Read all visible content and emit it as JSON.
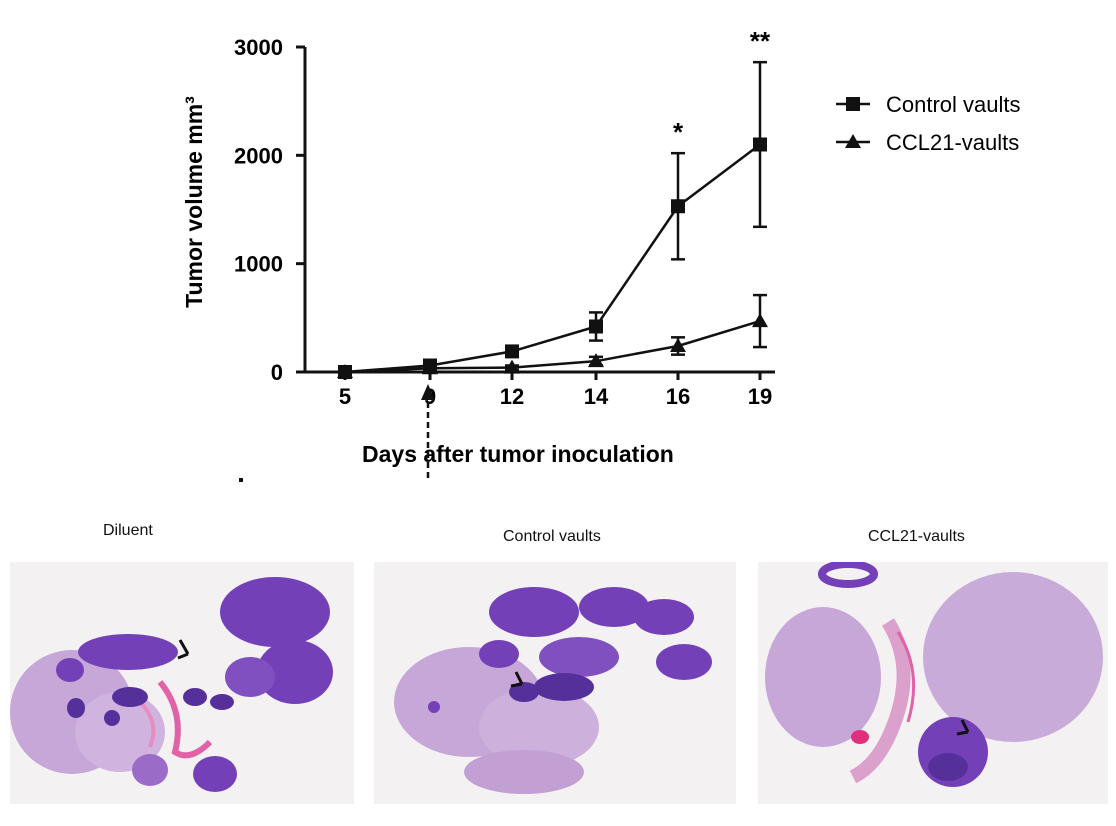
{
  "chart_data": {
    "type": "line",
    "categories": [
      "5",
      "9",
      "12",
      "14",
      "16",
      "19"
    ],
    "ylabel": "Tumor volume mm³",
    "xlabel": "Days after tumor inoculation",
    "yticks": [
      "0",
      "1000",
      "2000",
      "3000"
    ],
    "ylim": [
      0,
      3000
    ],
    "legend_position": "right",
    "series": [
      {
        "name": "Control vaults",
        "marker": "square",
        "values": [
          0,
          60,
          190,
          420,
          1530,
          2100
        ],
        "errors": [
          0,
          20,
          40,
          130,
          490,
          760
        ]
      },
      {
        "name": "CCL21-vaults",
        "marker": "triangle",
        "values": [
          0,
          35,
          40,
          100,
          240,
          470
        ],
        "errors": [
          0,
          15,
          20,
          40,
          80,
          240
        ]
      }
    ],
    "annotations": [
      {
        "category": "16",
        "text": "*"
      },
      {
        "category": "19",
        "text": "**"
      }
    ],
    "treatment_marker_day": "9",
    "color": "#111111"
  },
  "panels": [
    {
      "label": "Diluent"
    },
    {
      "label": "Control vaults"
    },
    {
      "label": "CCL21-vaults"
    }
  ],
  "colors": {
    "tissue_light": "#c7a6d8",
    "tissue_dark": "#7440b8",
    "tissue_deep": "#55309a",
    "eosin": "#e262a8",
    "background": "#f3f1f2"
  }
}
